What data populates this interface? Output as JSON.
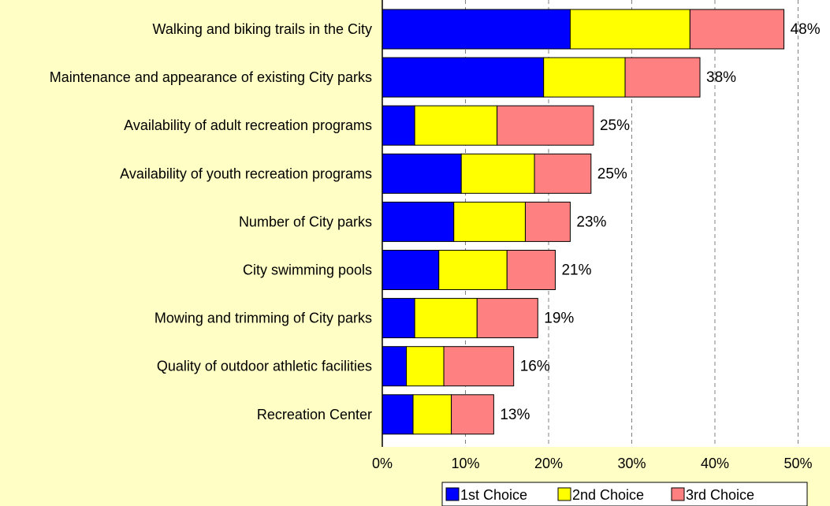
{
  "chart_data": {
    "type": "bar",
    "orientation": "horizontal",
    "stacked": true,
    "categories": [
      "Walking and biking trails in the City",
      "Maintenance and appearance of existing City parks",
      "Availability of adult recreation programs",
      "Availability of youth recreation programs",
      "Number of City parks",
      "City swimming pools",
      "Mowing and trimming of City parks",
      "Quality of outdoor athletic facilities",
      "Recreation Center"
    ],
    "series": [
      {
        "name": "1st Choice",
        "color": "#0000FF",
        "values": [
          22.6,
          19.4,
          3.9,
          9.5,
          8.6,
          6.8,
          3.9,
          2.9,
          3.7
        ]
      },
      {
        "name": "2nd Choice",
        "color": "#FFFF00",
        "values": [
          14.4,
          9.8,
          9.9,
          8.8,
          8.6,
          8.2,
          7.5,
          4.5,
          4.6
        ]
      },
      {
        "name": "3rd Choice",
        "color": "#FF8080",
        "values": [
          11.3,
          9.0,
          11.6,
          6.8,
          5.4,
          5.8,
          7.3,
          8.4,
          5.1
        ]
      }
    ],
    "totals": [
      "48%",
      "38%",
      "25%",
      "25%",
      "23%",
      "21%",
      "19%",
      "16%",
      "13%"
    ],
    "xlim": [
      0,
      50
    ],
    "xticks": [
      "0%",
      "10%",
      "20%",
      "30%",
      "40%",
      "50%"
    ],
    "grid": true,
    "legend_position": "bottom"
  }
}
